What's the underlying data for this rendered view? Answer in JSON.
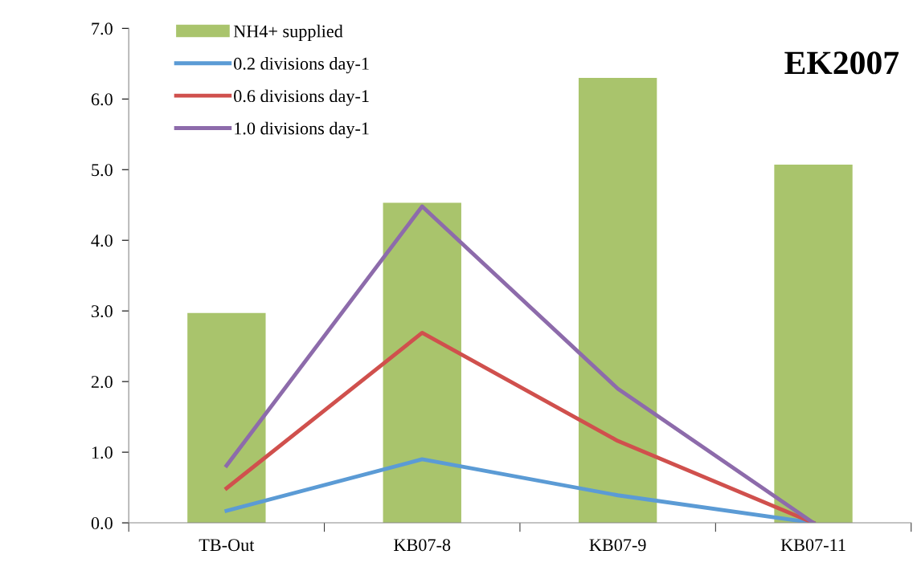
{
  "chart_data": {
    "type": "bar",
    "categories": [
      "TB-Out",
      "KB07-8",
      "KB07-9",
      "KB07-11"
    ],
    "series": [
      {
        "name": "NH4+ supplied",
        "color": "#a9c46c",
        "values": [
          2.97,
          4.53,
          6.3,
          5.07
        ]
      },
      {
        "name": "0.2 divisions day-1",
        "type": "line",
        "color": "#5b9bd5",
        "values": [
          0.17,
          0.9,
          0.39,
          0.0
        ]
      },
      {
        "name": "0.6 divisions day-1",
        "type": "line",
        "color": "#d0504d",
        "values": [
          0.49,
          2.69,
          1.16,
          0.0
        ]
      },
      {
        "name": "1.0 divisions day-1",
        "type": "line",
        "color": "#8d6bab",
        "values": [
          0.81,
          4.48,
          1.9,
          0.0
        ]
      }
    ],
    "ylim": [
      0,
      7
    ],
    "yticks": [
      {
        "value": 0,
        "label": "0.0"
      },
      {
        "value": 1,
        "label": "1.0"
      },
      {
        "value": 2,
        "label": "2.0"
      },
      {
        "value": 3,
        "label": "3.0"
      },
      {
        "value": 4,
        "label": "4.0"
      },
      {
        "value": 5,
        "label": "5.0"
      },
      {
        "value": 6,
        "label": "6.0"
      },
      {
        "value": 7,
        "label": "7.0"
      }
    ],
    "annotations": [
      "EK2007"
    ],
    "legend": "top left",
    "grid": false,
    "marker": "none",
    "line_style": "solid"
  }
}
